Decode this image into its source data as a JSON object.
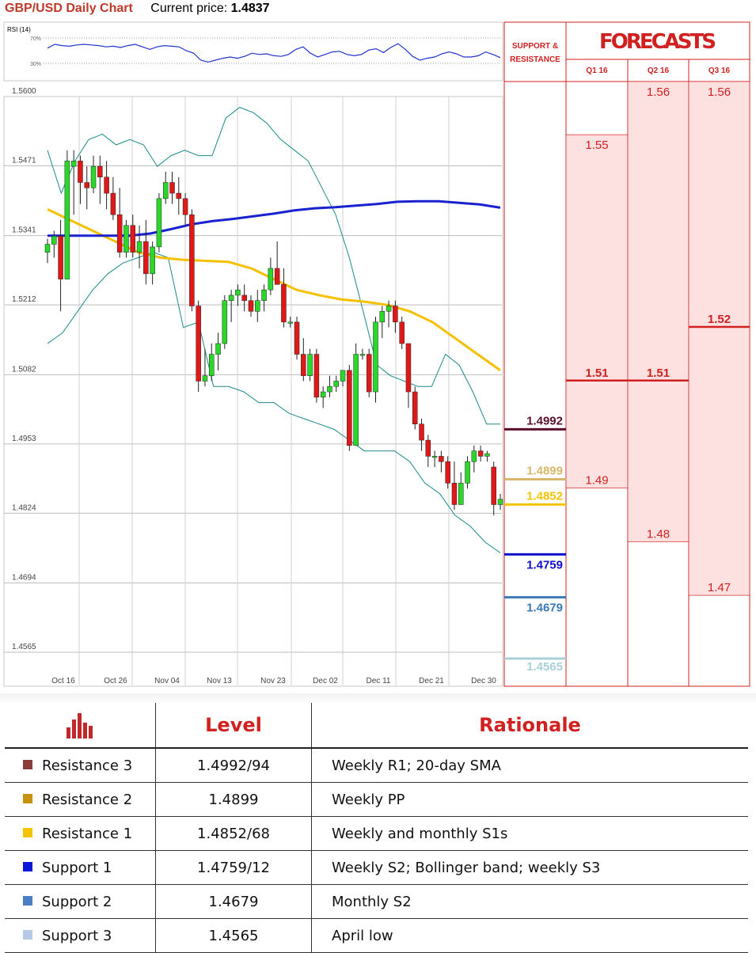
{
  "header": {
    "title": "GBP/USD Daily Chart",
    "price_label": "Current price:",
    "price_value": "1.4837"
  },
  "rsi": {
    "label": "RSI (14)",
    "levels": [
      "70%",
      "30%"
    ],
    "values": [
      54,
      60,
      58,
      57,
      59,
      60,
      59,
      58,
      56,
      57,
      55,
      58,
      60,
      56,
      52,
      56,
      58,
      57,
      56,
      50,
      46,
      35,
      32,
      35,
      38,
      40,
      38,
      41,
      46,
      44,
      45,
      42,
      41,
      44,
      52,
      56,
      46,
      40,
      44,
      48,
      49,
      44,
      42,
      44,
      51,
      53,
      47,
      55,
      61,
      52,
      41,
      35,
      38,
      40,
      45,
      48,
      45,
      40,
      40,
      42,
      48,
      44,
      39
    ]
  },
  "chart_data": {
    "type": "candlestick",
    "title": "GBP/USD Daily Chart",
    "y_ticks": [
      "1.5600",
      "1.5471",
      "1.5341",
      "1.5212",
      "1.5082",
      "1.4953",
      "1.4824",
      "1.4694",
      "1.4565"
    ],
    "x_ticks": [
      "Oct 16",
      "Oct 26",
      "Nov 04",
      "Nov 13",
      "Nov 23",
      "Dec 02",
      "Dec 11",
      "Dec 21",
      "Dec 30"
    ],
    "ylim": [
      1.4565,
      1.56
    ],
    "grid": true,
    "candles": [
      {
        "o": 1.531,
        "h": 1.5335,
        "l": 1.529,
        "c": 1.5325
      },
      {
        "o": 1.5325,
        "h": 1.535,
        "l": 1.53,
        "c": 1.534
      },
      {
        "o": 1.534,
        "h": 1.537,
        "l": 1.52,
        "c": 1.526
      },
      {
        "o": 1.526,
        "h": 1.55,
        "l": 1.526,
        "c": 1.548
      },
      {
        "o": 1.547,
        "h": 1.55,
        "l": 1.538,
        "c": 1.548
      },
      {
        "o": 1.548,
        "h": 1.549,
        "l": 1.54,
        "c": 1.544
      },
      {
        "o": 1.544,
        "h": 1.547,
        "l": 1.539,
        "c": 1.543
      },
      {
        "o": 1.543,
        "h": 1.549,
        "l": 1.542,
        "c": 1.547
      },
      {
        "o": 1.547,
        "h": 1.549,
        "l": 1.54,
        "c": 1.545
      },
      {
        "o": 1.545,
        "h": 1.548,
        "l": 1.539,
        "c": 1.542
      },
      {
        "o": 1.542,
        "h": 1.545,
        "l": 1.537,
        "c": 1.538
      },
      {
        "o": 1.538,
        "h": 1.543,
        "l": 1.53,
        "c": 1.531
      },
      {
        "o": 1.531,
        "h": 1.537,
        "l": 1.53,
        "c": 1.536
      },
      {
        "o": 1.536,
        "h": 1.538,
        "l": 1.53,
        "c": 1.531
      },
      {
        "o": 1.531,
        "h": 1.536,
        "l": 1.528,
        "c": 1.533
      },
      {
        "o": 1.533,
        "h": 1.537,
        "l": 1.525,
        "c": 1.527
      },
      {
        "o": 1.527,
        "h": 1.533,
        "l": 1.525,
        "c": 1.532
      },
      {
        "o": 1.532,
        "h": 1.542,
        "l": 1.531,
        "c": 1.541
      },
      {
        "o": 1.541,
        "h": 1.546,
        "l": 1.54,
        "c": 1.544
      },
      {
        "o": 1.544,
        "h": 1.546,
        "l": 1.54,
        "c": 1.542
      },
      {
        "o": 1.542,
        "h": 1.545,
        "l": 1.538,
        "c": 1.541
      },
      {
        "o": 1.541,
        "h": 1.542,
        "l": 1.536,
        "c": 1.538
      },
      {
        "o": 1.538,
        "h": 1.539,
        "l": 1.52,
        "c": 1.521
      },
      {
        "o": 1.521,
        "h": 1.522,
        "l": 1.505,
        "c": 1.507
      },
      {
        "o": 1.507,
        "h": 1.513,
        "l": 1.506,
        "c": 1.508
      },
      {
        "o": 1.508,
        "h": 1.514,
        "l": 1.507,
        "c": 1.512
      },
      {
        "o": 1.512,
        "h": 1.516,
        "l": 1.509,
        "c": 1.514
      },
      {
        "o": 1.514,
        "h": 1.523,
        "l": 1.513,
        "c": 1.522
      },
      {
        "o": 1.522,
        "h": 1.524,
        "l": 1.518,
        "c": 1.523
      },
      {
        "o": 1.523,
        "h": 1.525,
        "l": 1.521,
        "c": 1.524
      },
      {
        "o": 1.523,
        "h": 1.525,
        "l": 1.52,
        "c": 1.522
      },
      {
        "o": 1.522,
        "h": 1.523,
        "l": 1.519,
        "c": 1.52
      },
      {
        "o": 1.52,
        "h": 1.524,
        "l": 1.518,
        "c": 1.522
      },
      {
        "o": 1.522,
        "h": 1.525,
        "l": 1.52,
        "c": 1.524
      },
      {
        "o": 1.524,
        "h": 1.53,
        "l": 1.523,
        "c": 1.528
      },
      {
        "o": 1.528,
        "h": 1.533,
        "l": 1.525,
        "c": 1.525
      },
      {
        "o": 1.525,
        "h": 1.528,
        "l": 1.517,
        "c": 1.518
      },
      {
        "o": 1.518,
        "h": 1.519,
        "l": 1.517,
        "c": 1.518
      },
      {
        "o": 1.518,
        "h": 1.519,
        "l": 1.511,
        "c": 1.512
      },
      {
        "o": 1.512,
        "h": 1.515,
        "l": 1.507,
        "c": 1.508
      },
      {
        "o": 1.508,
        "h": 1.513,
        "l": 1.507,
        "c": 1.512
      },
      {
        "o": 1.512,
        "h": 1.513,
        "l": 1.503,
        "c": 1.504
      },
      {
        "o": 1.504,
        "h": 1.506,
        "l": 1.502,
        "c": 1.505
      },
      {
        "o": 1.505,
        "h": 1.508,
        "l": 1.504,
        "c": 1.506
      },
      {
        "o": 1.506,
        "h": 1.508,
        "l": 1.505,
        "c": 1.507
      },
      {
        "o": 1.507,
        "h": 1.509,
        "l": 1.506,
        "c": 1.509
      },
      {
        "o": 1.509,
        "h": 1.51,
        "l": 1.494,
        "c": 1.495
      },
      {
        "o": 1.495,
        "h": 1.514,
        "l": 1.495,
        "c": 1.512
      },
      {
        "o": 1.512,
        "h": 1.513,
        "l": 1.511,
        "c": 1.512
      },
      {
        "o": 1.512,
        "h": 1.513,
        "l": 1.504,
        "c": 1.505
      },
      {
        "o": 1.505,
        "h": 1.519,
        "l": 1.503,
        "c": 1.518
      },
      {
        "o": 1.518,
        "h": 1.521,
        "l": 1.515,
        "c": 1.52
      },
      {
        "o": 1.52,
        "h": 1.522,
        "l": 1.517,
        "c": 1.521
      },
      {
        "o": 1.521,
        "h": 1.522,
        "l": 1.516,
        "c": 1.518
      },
      {
        "o": 1.518,
        "h": 1.519,
        "l": 1.513,
        "c": 1.514
      },
      {
        "o": 1.514,
        "h": 1.514,
        "l": 1.502,
        "c": 1.505
      },
      {
        "o": 1.505,
        "h": 1.506,
        "l": 1.498,
        "c": 1.499
      },
      {
        "o": 1.499,
        "h": 1.5,
        "l": 1.494,
        "c": 1.496
      },
      {
        "o": 1.496,
        "h": 1.497,
        "l": 1.491,
        "c": 1.493
      },
      {
        "o": 1.493,
        "h": 1.494,
        "l": 1.491,
        "c": 1.493
      },
      {
        "o": 1.493,
        "h": 1.494,
        "l": 1.49,
        "c": 1.492
      },
      {
        "o": 1.492,
        "h": 1.493,
        "l": 1.487,
        "c": 1.488
      },
      {
        "o": 1.488,
        "h": 1.492,
        "l": 1.483,
        "c": 1.484
      },
      {
        "o": 1.484,
        "h": 1.49,
        "l": 1.484,
        "c": 1.488
      },
      {
        "o": 1.488,
        "h": 1.493,
        "l": 1.487,
        "c": 1.492
      },
      {
        "o": 1.492,
        "h": 1.495,
        "l": 1.49,
        "c": 1.494
      },
      {
        "o": 1.494,
        "h": 1.495,
        "l": 1.492,
        "c": 1.493
      },
      {
        "o": 1.493,
        "h": 1.494,
        "l": 1.492,
        "c": 1.4935
      },
      {
        "o": 1.491,
        "h": 1.492,
        "l": 1.482,
        "c": 1.484
      },
      {
        "o": 1.484,
        "h": 1.486,
        "l": 1.483,
        "c": 1.485
      }
    ],
    "indicators": {
      "sma_blue": [
        1.5341,
        1.5341,
        1.5341,
        1.5341,
        1.5341,
        1.5345,
        1.5353,
        1.5362,
        1.5368,
        1.5372,
        1.5377,
        1.5382,
        1.5388,
        1.5392,
        1.5394,
        1.5397,
        1.54,
        1.5404,
        1.5405,
        1.5405,
        1.5402,
        1.5399,
        1.5393
      ],
      "sma_yellow": [
        1.539,
        1.537,
        1.535,
        1.533,
        1.531,
        1.53,
        1.5296,
        1.5294,
        1.5292,
        1.528,
        1.526,
        1.524,
        1.523,
        1.5222,
        1.5218,
        1.5212,
        1.52,
        1.518,
        1.515,
        1.512,
        1.509
      ],
      "bb_upper": [
        1.55,
        1.542,
        1.548,
        1.552,
        1.553,
        1.551,
        1.552,
        1.551,
        1.547,
        1.549,
        1.55,
        1.549,
        1.549,
        1.556,
        1.558,
        1.557,
        1.555,
        1.552,
        1.55,
        1.548,
        1.543,
        1.538,
        1.53,
        1.52,
        1.51,
        1.508,
        1.507,
        1.506,
        1.506,
        1.512,
        1.51,
        1.505,
        1.499,
        1.499
      ],
      "bb_lower": [
        1.514,
        1.516,
        1.52,
        1.524,
        1.527,
        1.529,
        1.53,
        1.531,
        1.53,
        1.517,
        1.518,
        1.506,
        1.506,
        1.505,
        1.503,
        1.503,
        1.501,
        1.5,
        1.499,
        1.498,
        1.496,
        1.494,
        1.494,
        1.494,
        1.492,
        1.488,
        1.486,
        1.482,
        1.48,
        1.477,
        1.475
      ]
    },
    "levels": [
      {
        "value": 1.4992,
        "label": "1.4992",
        "color": "#5a0f2e"
      },
      {
        "value": 1.4899,
        "label": "1.4899",
        "color": "#d8b76a"
      },
      {
        "value": 1.4852,
        "label": "1.4852",
        "color": "#f5c400"
      },
      {
        "value": 1.4759,
        "label": "1.4759",
        "color": "#1010cc"
      },
      {
        "value": 1.4679,
        "label": "1.4679",
        "color": "#3a7ab8"
      },
      {
        "value": 1.4565,
        "label": "1.4565",
        "color": "#a8d0d8"
      }
    ],
    "forecasts": {
      "title": "FORECASTS",
      "sr_label_1": "SUPPORT &",
      "sr_label_2": "RESISTANCE",
      "columns": [
        {
          "name": "Q1 16",
          "high": 1.55,
          "high_label": "1.55",
          "mid": 1.51,
          "mid_label": "1.51",
          "low": 1.49,
          "low_label": "1.49"
        },
        {
          "name": "Q2 16",
          "high": 1.56,
          "high_label": "1.56",
          "mid": 1.51,
          "mid_label": "1.51",
          "low": 1.48,
          "low_label": "1.48"
        },
        {
          "name": "Q3 16",
          "high": 1.56,
          "high_label": "1.56",
          "mid": 1.52,
          "mid_label": "1.52",
          "low": 1.47,
          "low_label": "1.47"
        }
      ]
    }
  },
  "table": {
    "headers": [
      "Level",
      "Rationale"
    ],
    "rows": [
      {
        "name": "Resistance 3",
        "level": "1.4992/94",
        "rationale": "Weekly R1; 20-day SMA",
        "color": "#8e3b3b"
      },
      {
        "name": "Resistance 2",
        "level": "1.4899",
        "rationale": "Weekly PP",
        "color": "#c8930c"
      },
      {
        "name": "Resistance 1",
        "level": "1.4852/68",
        "rationale": "Weekly and monthly S1s",
        "color": "#f5c400"
      },
      {
        "name": "Support 1",
        "level": "1.4759/12",
        "rationale": "Weekly S2; Bollinger band; weekly S3",
        "color": "#0b18d8"
      },
      {
        "name": "Support 2",
        "level": "1.4679",
        "rationale": "Monthly S2",
        "color": "#4a7ec0"
      },
      {
        "name": "Support 3",
        "level": "1.4565",
        "rationale": "April low",
        "color": "#b8c8e8"
      }
    ]
  }
}
